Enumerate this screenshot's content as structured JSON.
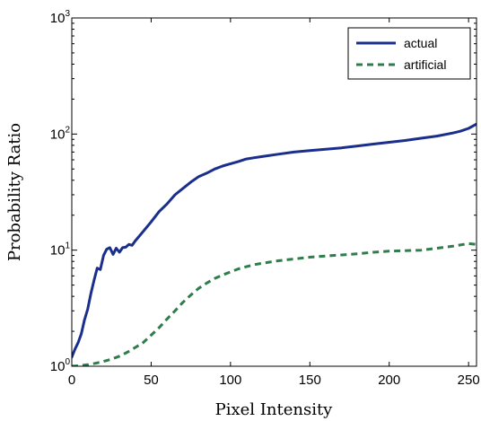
{
  "chart_data": {
    "type": "line",
    "xlabel": "Pixel Intensity",
    "ylabel": "Probability Ratio",
    "xlim": [
      0,
      255
    ],
    "ylim": [
      1,
      1000
    ],
    "yscale": "log",
    "x_ticks": [
      "0",
      "50",
      "100",
      "150",
      "200",
      "250"
    ],
    "y_ticks": [
      {
        "base": "10",
        "exp": "0"
      },
      {
        "base": "10",
        "exp": "1"
      },
      {
        "base": "10",
        "exp": "2"
      },
      {
        "base": "10",
        "exp": "3"
      }
    ],
    "grid": false,
    "legend_position": "top-right",
    "series": [
      {
        "name": "actual",
        "color": "#1a2e8c",
        "style": "solid",
        "x": [
          0,
          2,
          4,
          6,
          8,
          10,
          12,
          14,
          16,
          18,
          20,
          22,
          24,
          26,
          28,
          30,
          32,
          34,
          36,
          38,
          40,
          45,
          50,
          55,
          60,
          65,
          70,
          75,
          80,
          85,
          90,
          95,
          100,
          105,
          110,
          115,
          120,
          130,
          140,
          150,
          160,
          170,
          180,
          190,
          200,
          210,
          220,
          230,
          240,
          245,
          250,
          255
        ],
        "y": [
          1.2,
          1.4,
          1.6,
          1.9,
          2.5,
          3.1,
          4.2,
          5.5,
          7.0,
          6.8,
          9.0,
          10.2,
          10.5,
          9.2,
          10.4,
          9.6,
          10.5,
          10.6,
          11.2,
          11.0,
          12.0,
          14.5,
          17.5,
          21.5,
          25.0,
          30.0,
          34.0,
          38.5,
          43.0,
          46.0,
          50.0,
          53.0,
          55.5,
          58.0,
          61.0,
          62.5,
          64.0,
          67.0,
          70.0,
          72.0,
          74.0,
          76.0,
          79.0,
          82.0,
          85.0,
          88.0,
          92.0,
          96.0,
          102.0,
          106.0,
          112.0,
          122.0
        ]
      },
      {
        "name": "artificial",
        "color": "#2e7d4a",
        "style": "dashed",
        "x": [
          0,
          5,
          10,
          15,
          20,
          25,
          30,
          35,
          40,
          45,
          50,
          55,
          60,
          65,
          70,
          75,
          80,
          85,
          90,
          95,
          100,
          105,
          110,
          115,
          120,
          125,
          130,
          140,
          150,
          160,
          170,
          180,
          190,
          200,
          210,
          220,
          230,
          240,
          250,
          255
        ],
        "y": [
          1.0,
          1.01,
          1.03,
          1.06,
          1.1,
          1.15,
          1.22,
          1.32,
          1.45,
          1.6,
          1.85,
          2.15,
          2.55,
          3.0,
          3.55,
          4.1,
          4.7,
          5.2,
          5.7,
          6.1,
          6.5,
          6.9,
          7.2,
          7.5,
          7.7,
          7.9,
          8.1,
          8.4,
          8.7,
          8.9,
          9.1,
          9.3,
          9.6,
          9.8,
          9.9,
          10.0,
          10.4,
          10.8,
          11.4,
          11.2
        ]
      }
    ]
  }
}
